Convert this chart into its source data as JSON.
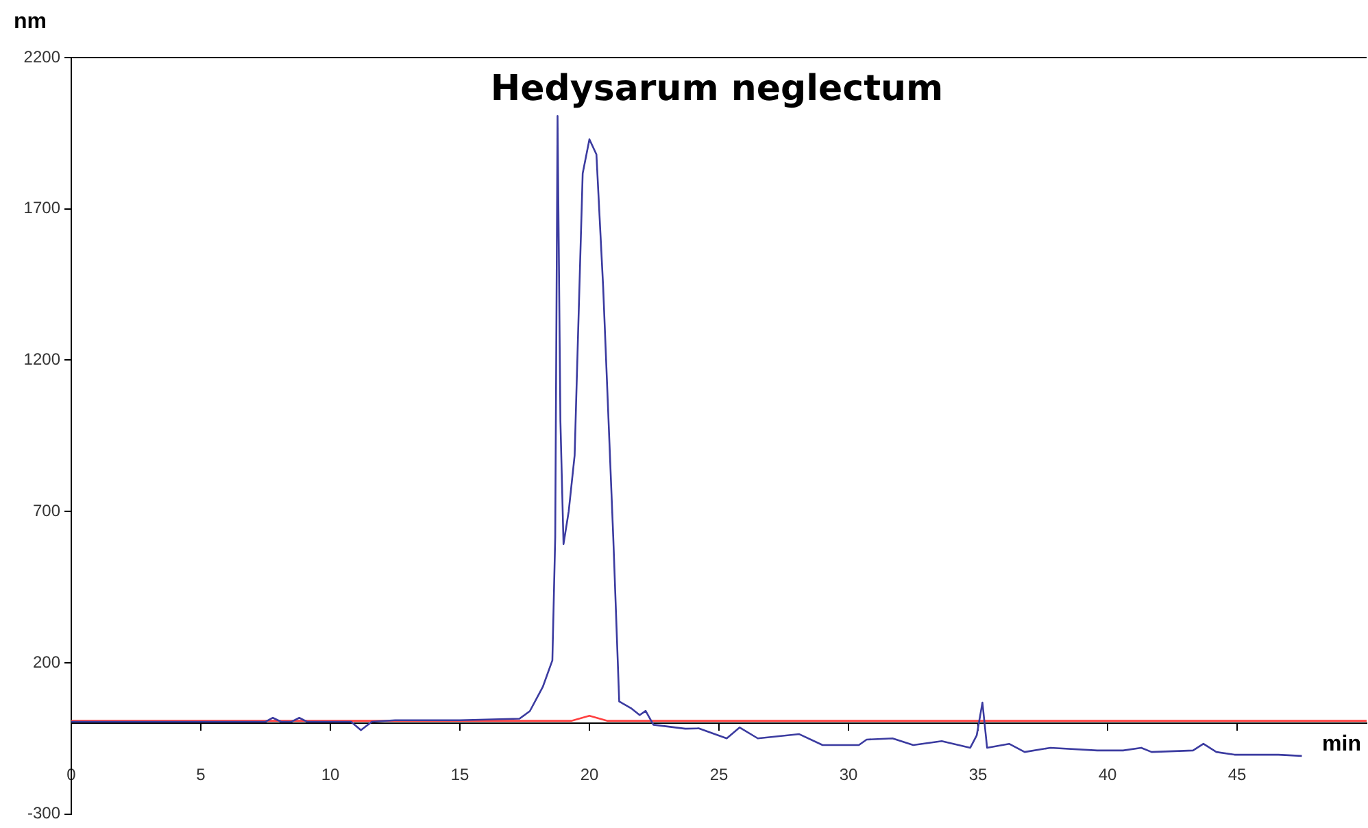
{
  "chart_data": {
    "type": "line",
    "title": "Hedysarum neglectum",
    "xlabel": "min",
    "ylabel": "nm",
    "xlim": [
      0,
      50
    ],
    "xticks": [
      0,
      5,
      10,
      15,
      20,
      25,
      30,
      35,
      40,
      45
    ],
    "ylim": [
      -300,
      2200
    ],
    "yticks": [
      -300,
      200,
      700,
      1200,
      1700,
      2200
    ],
    "grid": false,
    "legend": false,
    "marker": "none",
    "line_style": "solid",
    "series": [
      {
        "color": "#3b3ba0",
        "x": [
          0,
          7.5,
          7.78,
          8.1,
          8.5,
          8.8,
          9.1,
          10,
          10.8,
          11.18,
          11.6,
          12.5,
          15,
          17.3,
          17.7,
          18.2,
          18.57,
          18.68,
          18.77,
          18.88,
          19.0,
          19.2,
          19.43,
          19.5,
          19.74,
          20.0,
          20.27,
          20.53,
          20.92,
          21.15,
          21.6,
          21.94,
          22.17,
          22.47,
          23.7,
          24.23,
          25.3,
          25.8,
          26.5,
          28.1,
          29.0,
          30.4,
          30.7,
          31.7,
          32.5,
          33.6,
          34.7,
          34.95,
          35.17,
          35.35,
          36.2,
          36.8,
          37.8,
          39.6,
          40.6,
          41.3,
          41.7,
          43.3,
          43.7,
          44.2,
          44.9,
          46.6,
          47.5
        ],
        "values": [
          5,
          5,
          18,
          5,
          5,
          18,
          5,
          5,
          5,
          -23,
          5,
          10,
          10,
          15,
          40,
          120,
          208,
          615,
          2007,
          1000,
          592,
          700,
          886,
          1100,
          1817,
          1930,
          1880,
          1442,
          615,
          72,
          50,
          27,
          41,
          -5,
          -18,
          -17,
          -50,
          -14,
          -50,
          -36,
          -72,
          -72,
          -54,
          -50,
          -72,
          -59,
          -81,
          -40,
          68,
          -81,
          -68,
          -95,
          -81,
          -90,
          -90,
          -81,
          -95,
          -90,
          -68,
          -95,
          -104,
          -104,
          -108
        ]
      },
      {
        "color": "#ff4040",
        "x": [
          0,
          19.3,
          20.0,
          20.7,
          50
        ],
        "values": [
          8,
          8,
          25,
          8,
          8
        ]
      }
    ]
  }
}
